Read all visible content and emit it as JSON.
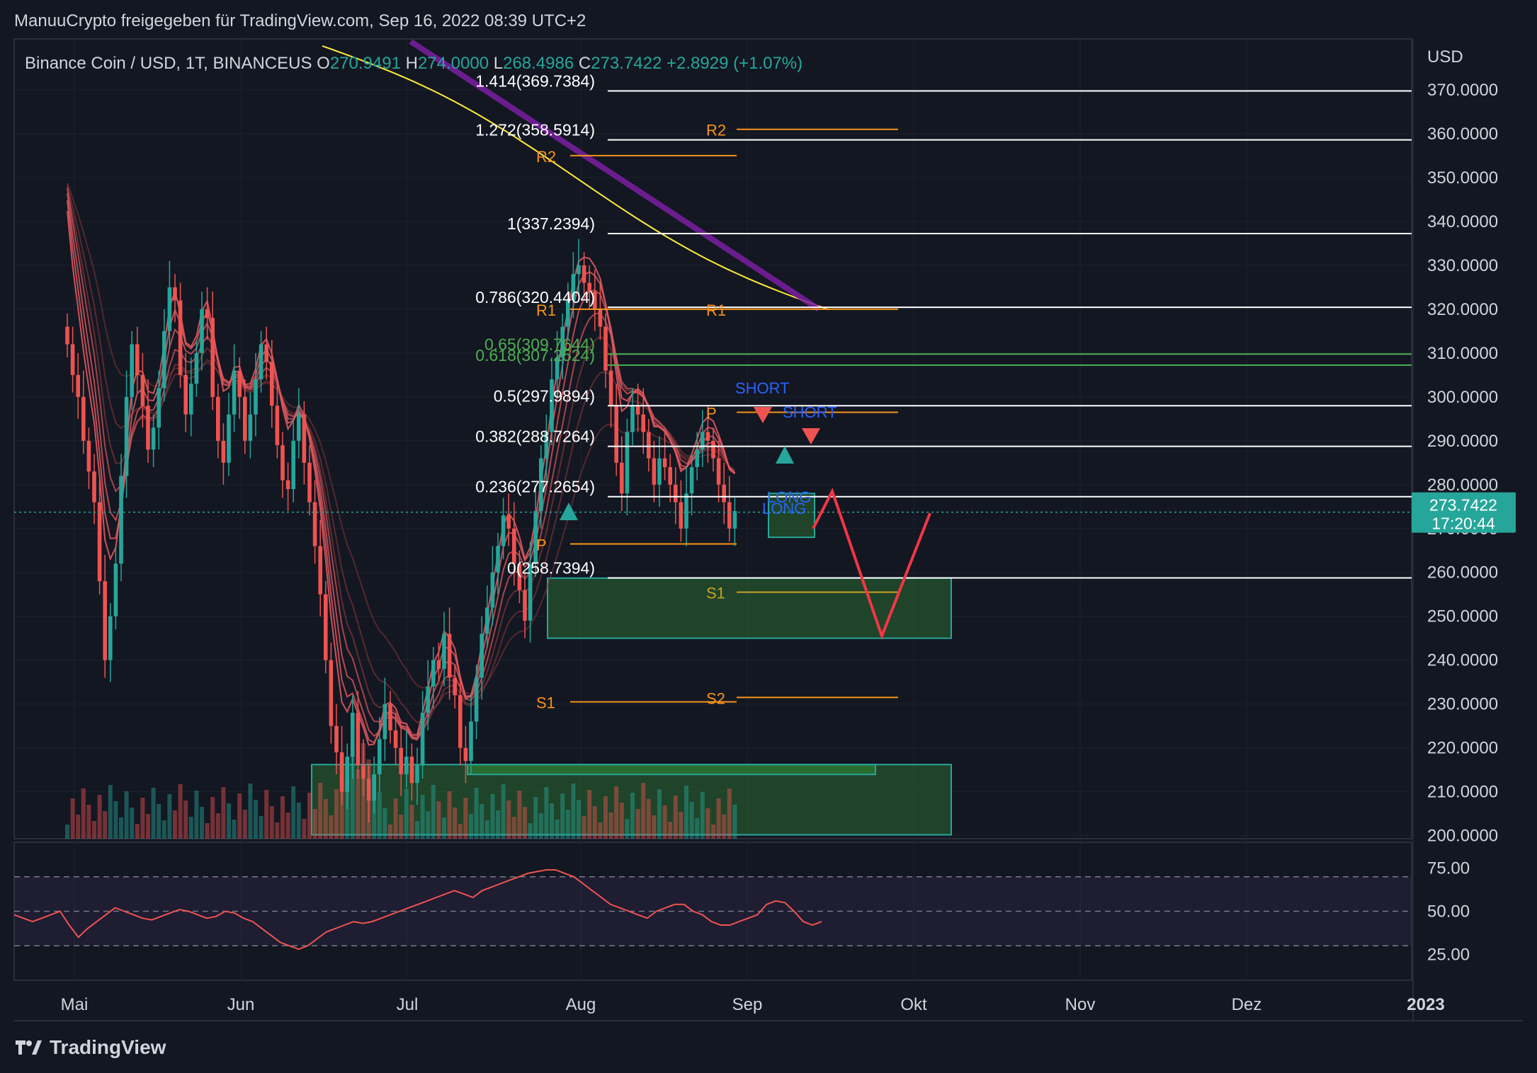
{
  "header": {
    "title": "ManuuCrypto freigegeben für TradingView.com, Sep 16, 2022 08:39 UTC+2"
  },
  "footer": {
    "brand": "TradingView",
    "icon": "tradingview-logo-icon"
  },
  "colors": {
    "background": "#131722",
    "grid": "#1e222d",
    "up": "#26a69a",
    "down": "#ef5350",
    "fib": "#ffffff",
    "fib_green": "#4caf50",
    "pivot": "#f7931a",
    "pivot_yellow": "#c9a227",
    "ema200": "#ffeb3b",
    "sma": "#7b1fa2",
    "rsi": "#ef5350",
    "zone": "#2e7d32",
    "projection": "#f23645"
  },
  "chart_data": {
    "type": "candlestick",
    "symbol": "Binance Coin / USD, 1T, BINANCEUS",
    "ohlc_labels": {
      "O": "270.9491",
      "H": "274.0000",
      "L": "268.4986",
      "C": "273.7422",
      "change": "+2.8929 (+1.07%)"
    },
    "price_axis": {
      "unit": "USD",
      "ticks": [
        "370.0000",
        "360.0000",
        "350.0000",
        "340.0000",
        "330.0000",
        "320.0000",
        "310.0000",
        "300.0000",
        "290.0000",
        "280.0000",
        "270.0000",
        "260.0000",
        "250.0000",
        "240.0000",
        "230.0000",
        "220.0000",
        "210.0000",
        "200.0000"
      ],
      "range": [
        199.3,
        381.6
      ]
    },
    "last_price": {
      "value": 273.7422,
      "label": "273.7422",
      "countdown": "17:20:44"
    },
    "time_axis": {
      "labels": [
        "Mai",
        "Jun",
        "Jul",
        "Aug",
        "Sep",
        "Okt",
        "Nov",
        "Dez",
        "2023"
      ]
    },
    "candles_close": [
      312,
      305,
      300,
      290,
      283,
      276,
      258,
      240,
      250,
      262,
      282,
      300,
      312,
      305,
      298,
      288,
      293,
      302,
      315,
      325,
      322,
      305,
      296,
      303,
      310,
      320,
      318,
      300,
      290,
      285,
      296,
      306,
      300,
      290,
      296,
      304,
      312,
      308,
      298,
      289,
      281,
      279,
      290,
      296,
      285,
      276,
      266,
      255,
      240,
      225,
      219,
      210,
      218,
      228,
      216,
      213,
      208,
      214,
      222,
      230,
      224,
      220,
      214,
      218,
      212,
      216,
      228,
      234,
      240,
      238,
      246,
      236,
      232,
      220,
      217,
      226,
      236,
      246,
      252,
      260,
      266,
      273,
      270,
      262,
      256,
      249,
      262,
      274,
      286,
      292,
      304,
      309,
      316,
      322,
      328,
      330,
      326,
      324,
      320,
      316,
      306,
      298,
      285,
      278,
      292,
      298,
      296,
      292,
      286,
      280,
      286,
      284,
      280,
      276,
      270,
      278,
      284,
      288,
      292,
      290,
      286,
      280,
      276,
      270,
      274
    ],
    "fib_levels": [
      {
        "ratio": "1.414(369.7384)",
        "value": 369.7384
      },
      {
        "ratio": "1.272(358.5914)",
        "value": 358.5914
      },
      {
        "ratio": "1(337.2394)",
        "value": 337.2394
      },
      {
        "ratio": "0.786(320.4404)",
        "value": 320.4404
      },
      {
        "ratio": "0.65(309.7644)",
        "value": 309.7644
      },
      {
        "ratio": "0.618(307.2524)",
        "value": 307.2524
      },
      {
        "ratio": "0.5(297.9894)",
        "value": 297.9894
      },
      {
        "ratio": "0.382(288.7264)",
        "value": 288.7264
      },
      {
        "ratio": "0.236(277.2654)",
        "value": 277.2654
      },
      {
        "ratio": "0(258.7394)",
        "value": 258.7394
      }
    ],
    "pivots": [
      {
        "label": "R2",
        "value": 361.0
      },
      {
        "label": "R2",
        "value": 355.0
      },
      {
        "label": "R1",
        "value": 320.0
      },
      {
        "label": "R1",
        "value": 320.0
      },
      {
        "label": "P",
        "value": 296.5
      },
      {
        "label": "P",
        "value": 266.5
      },
      {
        "label": "S1",
        "value": 255.5
      },
      {
        "label": "S2",
        "value": 231.5
      },
      {
        "label": "S1",
        "value": 230.5
      }
    ],
    "signals": [
      "SHORT",
      "SHORT",
      "LONG",
      "LONG"
    ],
    "zones": [
      {
        "from": 245.0,
        "to": 258.7
      },
      {
        "from": 200.2,
        "to": 216.2
      },
      {
        "from": 268.0,
        "to": 278.0
      }
    ],
    "rsi": {
      "ticks": [
        "75.00",
        "50.00",
        "25.00"
      ],
      "levels": {
        "upper": 70,
        "middle": 50,
        "lower": 30
      },
      "values": [
        48,
        46,
        44,
        46,
        48,
        50,
        42,
        35,
        40,
        44,
        48,
        52,
        50,
        48,
        46,
        45,
        47,
        49,
        51,
        50,
        48,
        46,
        47,
        50,
        49,
        46,
        44,
        40,
        36,
        32,
        30,
        28,
        30,
        34,
        38,
        40,
        42,
        44,
        43,
        44,
        46,
        48,
        50,
        52,
        54,
        56,
        58,
        60,
        62,
        60,
        58,
        62,
        64,
        66,
        68,
        70,
        72,
        73,
        74,
        74,
        72,
        70,
        66,
        62,
        58,
        54,
        52,
        50,
        48,
        46,
        50,
        52,
        54,
        54,
        50,
        48,
        44,
        42,
        42,
        44,
        46,
        48,
        54,
        56,
        55,
        50,
        44,
        42,
        44
      ]
    },
    "title": "",
    "xlabel": "",
    "ylabel": "USD"
  }
}
